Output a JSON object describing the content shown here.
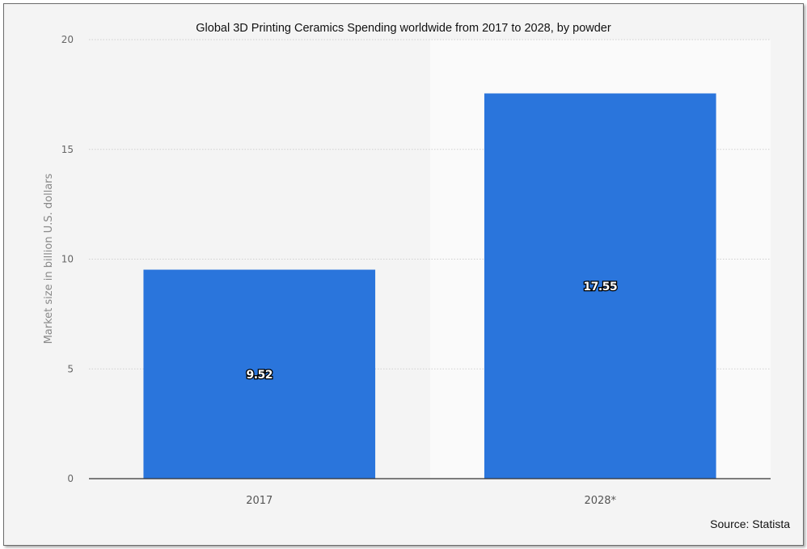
{
  "chart_data": {
    "type": "bar",
    "title": "Global 3D Printing Ceramics Spending worldwide from 2017 to 2028, by powder",
    "categories": [
      "2017",
      "2028*"
    ],
    "values": [
      9.52,
      17.55
    ],
    "data_labels": [
      "9.52",
      "17.55"
    ],
    "xlabel": "",
    "ylabel": "Market size in billion U.S. dollars",
    "ylim": [
      0,
      20
    ],
    "yticks": [
      "0",
      "5",
      "10",
      "15",
      "20"
    ],
    "grid": true,
    "legend": "none",
    "bar_color": "#2a75dc",
    "source": "Source: Statista"
  }
}
